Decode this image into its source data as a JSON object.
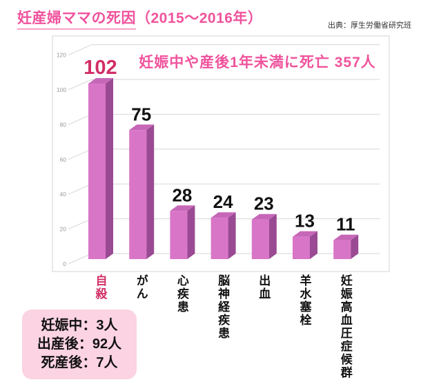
{
  "header": {
    "title_main": "妊産婦ママの死因",
    "title_period": "（2015〜2016年）",
    "source": "出典：厚生労働省研究班"
  },
  "chart_data": {
    "type": "bar",
    "style": "3d-column",
    "title": "妊産婦ママの死因（2015〜2016年）",
    "annotation": "妊娠中や産後1年未満に死亡 357人",
    "categories": [
      "自殺",
      "がん",
      "心疾患",
      "脳神経疾患",
      "出血",
      "羊水塞栓",
      "妊娠高血圧症候群"
    ],
    "values": [
      102,
      75,
      28,
      24,
      23,
      13,
      11
    ],
    "highlight_index": 0,
    "yticks": [
      0,
      20,
      40,
      60,
      80,
      100,
      120
    ],
    "ylim": [
      0,
      120
    ],
    "xlabel": "",
    "ylabel": "",
    "legend": false,
    "grid": true,
    "colors": {
      "bar_front": "#d975c7",
      "bar_top": "#c767b7",
      "bar_side": "#9a4a92",
      "highlight": "#d12e66",
      "value_label": "#111111",
      "category_label": "#111111",
      "pink_accent": "#f0529c",
      "grid": "#d6d6d6",
      "tick_label": "#999999",
      "frame": "#d3d3d3"
    }
  },
  "note_box": {
    "lines": [
      "妊娠中：3人",
      "出産後：92人",
      "死産後：7人"
    ]
  }
}
